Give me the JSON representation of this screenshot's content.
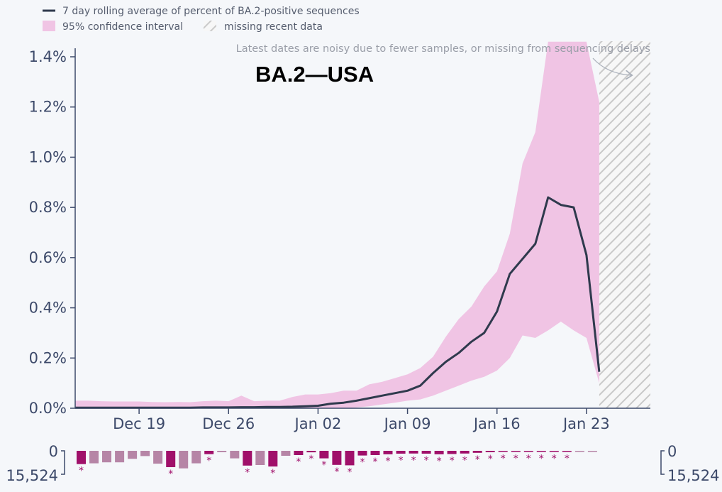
{
  "legend": {
    "line_label": "7 day rolling average of percent of BA.2-positive sequences",
    "ci_label": "95% confidence interval",
    "missing_label": "missing recent data"
  },
  "annotation": "Latest dates are noisy due to fewer samples, or missing from sequencing delays",
  "colors": {
    "line": "#2f3a4d",
    "ci": "#f0c4e4",
    "bar_strong": "#a0106a",
    "bar_weak": "#b685a6",
    "axis": "#3d4a6a",
    "hatch": "#c9c9c9"
  },
  "chart_data": {
    "type": "line",
    "title": "BA.2—USA",
    "y_axis": {
      "min": 0,
      "max": 1.4,
      "ticks": [
        "0.0%",
        "0.2%",
        "0.4%",
        "0.6%",
        "0.8%",
        "1.0%",
        "1.2%",
        "1.4%"
      ],
      "tick_values": [
        0,
        0.2,
        0.4,
        0.6,
        0.8,
        1.0,
        1.2,
        1.4
      ]
    },
    "x_axis": {
      "start_day": 0,
      "end_day": 45,
      "tick_labels": [
        "Dec 19",
        "Dec 26",
        "Jan 02",
        "Jan 09",
        "Jan 16",
        "Jan 23"
      ],
      "tick_days": [
        5,
        12,
        19,
        26,
        33,
        40
      ]
    },
    "missing_from_day": 41,
    "series_days": [
      0,
      1,
      2,
      3,
      4,
      5,
      6,
      7,
      8,
      9,
      10,
      11,
      12,
      13,
      14,
      15,
      16,
      17,
      18,
      19,
      20,
      21,
      22,
      23,
      24,
      25,
      26,
      27,
      28,
      29,
      30,
      31,
      32,
      33,
      34,
      35,
      36,
      37,
      38,
      39,
      40,
      41
    ],
    "rolling_avg": [
      0.002,
      0.002,
      0.002,
      0.002,
      0.002,
      0.002,
      0.002,
      0.002,
      0.002,
      0.002,
      0.003,
      0.003,
      0.003,
      0.004,
      0.004,
      0.005,
      0.005,
      0.006,
      0.008,
      0.01,
      0.018,
      0.022,
      0.03,
      0.04,
      0.05,
      0.06,
      0.07,
      0.09,
      0.14,
      0.185,
      0.22,
      0.265,
      0.3,
      0.385,
      0.535,
      0.595,
      0.655,
      0.84,
      0.81,
      0.8,
      0.61,
      0.145
    ],
    "ci_upper": [
      0.03,
      0.03,
      0.028,
      0.027,
      0.027,
      0.027,
      0.025,
      0.024,
      0.025,
      0.024,
      0.028,
      0.03,
      0.028,
      0.05,
      0.028,
      0.03,
      0.03,
      0.045,
      0.055,
      0.055,
      0.06,
      0.07,
      0.07,
      0.095,
      0.105,
      0.12,
      0.135,
      0.16,
      0.205,
      0.285,
      0.355,
      0.405,
      0.485,
      0.545,
      0.695,
      0.975,
      1.1,
      1.46,
      1.46,
      1.46,
      1.46,
      1.22
    ],
    "ci_lower": [
      0.0,
      0.0,
      0.0,
      0.0,
      0.0,
      0.0,
      0.0,
      0.0,
      0.0,
      0.0,
      0.0,
      0.0,
      0.0,
      0.0,
      0.0,
      0.0,
      0.0,
      0.0,
      0.0,
      0.0,
      0.0,
      0.0,
      0.003,
      0.008,
      0.015,
      0.022,
      0.03,
      0.035,
      0.05,
      0.07,
      0.09,
      0.11,
      0.125,
      0.15,
      0.2,
      0.29,
      0.28,
      0.31,
      0.345,
      0.31,
      0.28,
      0.1
    ],
    "sample_counts": {
      "top_label": "0",
      "bottom_label": "15,524",
      "right_top_label": "0",
      "right_bottom_label": "15,524",
      "max": 15524,
      "values": [
        8800,
        8300,
        7600,
        7600,
        5300,
        3500,
        8500,
        10800,
        11600,
        8300,
        2200,
        900,
        5000,
        9800,
        9400,
        10400,
        3300,
        2800,
        1000,
        5000,
        9300,
        9600,
        3100,
        2800,
        2300,
        1900,
        1800,
        1900,
        2300,
        2100,
        1800,
        1300,
        900,
        700,
        600,
        500,
        400,
        400,
        200,
        100,
        50
      ],
      "strong": [
        true,
        false,
        false,
        false,
        false,
        false,
        false,
        true,
        false,
        false,
        true,
        false,
        false,
        true,
        false,
        true,
        false,
        true,
        true,
        true,
        true,
        true,
        true,
        true,
        true,
        true,
        true,
        true,
        true,
        true,
        true,
        true,
        true,
        true,
        true,
        true,
        true,
        true,
        true,
        false,
        false
      ],
      "starred": [
        true,
        false,
        false,
        false,
        false,
        false,
        false,
        true,
        false,
        false,
        true,
        false,
        false,
        true,
        false,
        true,
        false,
        true,
        true,
        true,
        true,
        true,
        true,
        true,
        true,
        true,
        true,
        true,
        true,
        true,
        true,
        true,
        true,
        true,
        true,
        true,
        true,
        true,
        true,
        false,
        false
      ],
      "star_char": "*"
    }
  }
}
